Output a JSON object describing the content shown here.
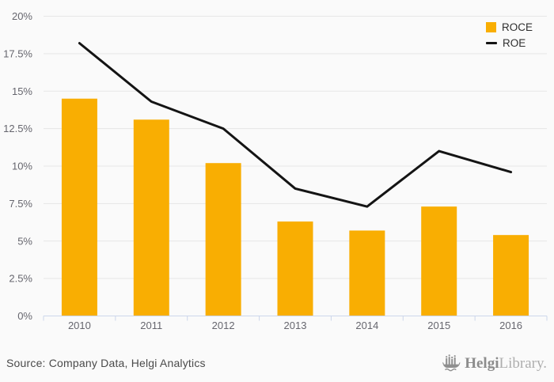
{
  "chart_data": {
    "type": "bar",
    "subtype": "bar-line-combo",
    "title": "",
    "xlabel": "",
    "ylabel": "",
    "categories": [
      "2010",
      "2011",
      "2012",
      "2013",
      "2014",
      "2015",
      "2016"
    ],
    "series": [
      {
        "name": "ROCE",
        "type": "bar",
        "color": "#f9ae02",
        "values": [
          14.5,
          13.1,
          10.2,
          6.3,
          5.7,
          7.3,
          5.4
        ]
      },
      {
        "name": "ROE",
        "type": "line",
        "color": "#141414",
        "values": [
          18.2,
          14.3,
          12.5,
          8.5,
          7.3,
          11.0,
          9.6
        ]
      }
    ],
    "ylim": [
      0,
      20
    ],
    "yticks": [
      0,
      2.5,
      5,
      7.5,
      10,
      12.5,
      15,
      17.5,
      20
    ],
    "ytick_labels": [
      "0%",
      "2.5%",
      "5%",
      "7.5%",
      "10%",
      "12.5%",
      "15%",
      "17.5%",
      "20%"
    ],
    "grid": true,
    "legend_position": "top-right",
    "axis_line_color": "#ccd6eb",
    "grid_color": "#e6e6e6",
    "tick_label_color": "#66666e"
  },
  "footer": {
    "source": "Source: Company Data, Helgi Analytics",
    "brand": {
      "bold": "Helgi",
      "light": "Library."
    }
  }
}
